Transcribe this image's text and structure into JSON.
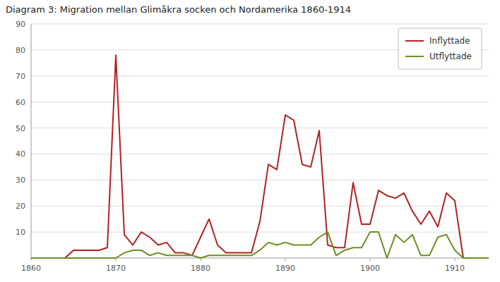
{
  "chart_data": {
    "type": "line",
    "title": "Diagram 3: Migration mellan Glimåkra socken och Nordamerika 1860-1914",
    "x": [
      1860,
      1861,
      1862,
      1863,
      1864,
      1865,
      1866,
      1867,
      1868,
      1869,
      1870,
      1871,
      1872,
      1873,
      1874,
      1875,
      1876,
      1877,
      1878,
      1879,
      1880,
      1881,
      1882,
      1883,
      1884,
      1885,
      1886,
      1887,
      1888,
      1889,
      1890,
      1891,
      1892,
      1893,
      1894,
      1895,
      1896,
      1897,
      1898,
      1899,
      1900,
      1901,
      1902,
      1903,
      1904,
      1905,
      1906,
      1907,
      1908,
      1909,
      1910,
      1911,
      1912,
      1913,
      1914
    ],
    "series": [
      {
        "name": "Inflyttade",
        "color": "#b22222",
        "values": [
          0,
          0,
          0,
          0,
          0,
          3,
          3,
          3,
          3,
          4,
          78,
          9,
          5,
          10,
          8,
          5,
          6,
          2,
          2,
          1,
          8,
          15,
          5,
          2,
          2,
          2,
          2,
          14,
          36,
          34,
          55,
          53,
          36,
          35,
          49,
          5,
          4,
          4,
          29,
          13,
          13,
          26,
          24,
          23,
          25,
          18,
          13,
          18,
          12,
          25,
          22,
          0,
          0,
          0,
          0
        ]
      },
      {
        "name": "Utflyttade",
        "color": "#6b8e23",
        "values": [
          0,
          0,
          0,
          0,
          0,
          0,
          0,
          0,
          0,
          0,
          0,
          2,
          3,
          3,
          1,
          2,
          1,
          1,
          1,
          1,
          0,
          1,
          1,
          1,
          1,
          1,
          1,
          3,
          6,
          5,
          6,
          5,
          5,
          5,
          8,
          10,
          1,
          3,
          4,
          4,
          10,
          10,
          0,
          9,
          6,
          9,
          1,
          1,
          8,
          9,
          3,
          0,
          0,
          0,
          0
        ]
      }
    ],
    "xlim": [
      1860,
      1914
    ],
    "xticks": [
      1860,
      1870,
      1880,
      1890,
      1900,
      1910
    ],
    "ylim": [
      0,
      90
    ],
    "yticks": [
      10,
      20,
      30,
      40,
      50,
      60,
      70,
      80,
      90
    ],
    "grid": true,
    "legend": "upper right"
  }
}
